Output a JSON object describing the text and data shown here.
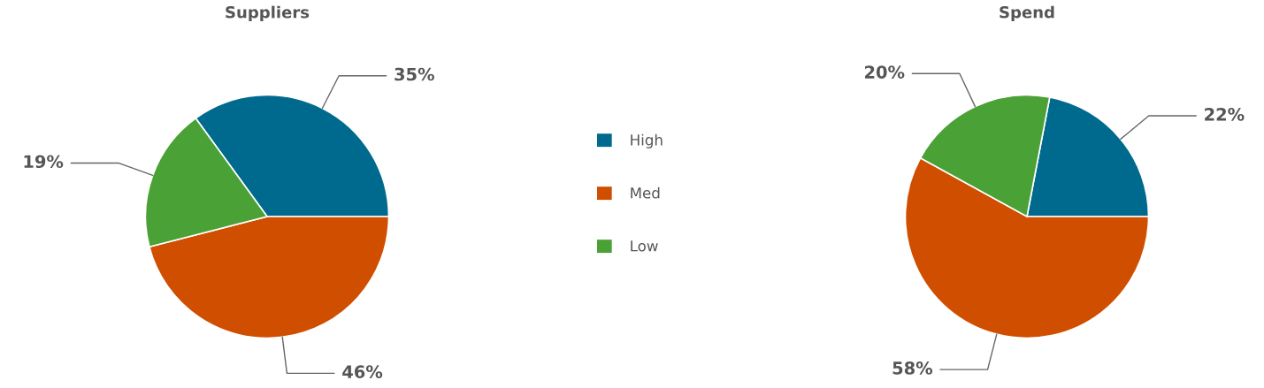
{
  "chart_data": [
    {
      "type": "pie",
      "title": "Suppliers",
      "categories": [
        "High",
        "Med",
        "Low"
      ],
      "values": [
        35,
        46,
        19
      ],
      "colors": [
        "#006a8e",
        "#d04e00",
        "#4aa135"
      ],
      "value_labels": [
        "35%",
        "46%",
        "19%"
      ],
      "legend": "right"
    },
    {
      "type": "pie",
      "title": "Spend",
      "categories": [
        null,
        null,
        null
      ],
      "values": [
        22,
        58,
        20
      ],
      "colors": [
        "#006a8e",
        "#d04e00",
        "#4aa135"
      ],
      "value_labels": [
        "22%",
        "58%",
        "20%"
      ]
    }
  ]
}
